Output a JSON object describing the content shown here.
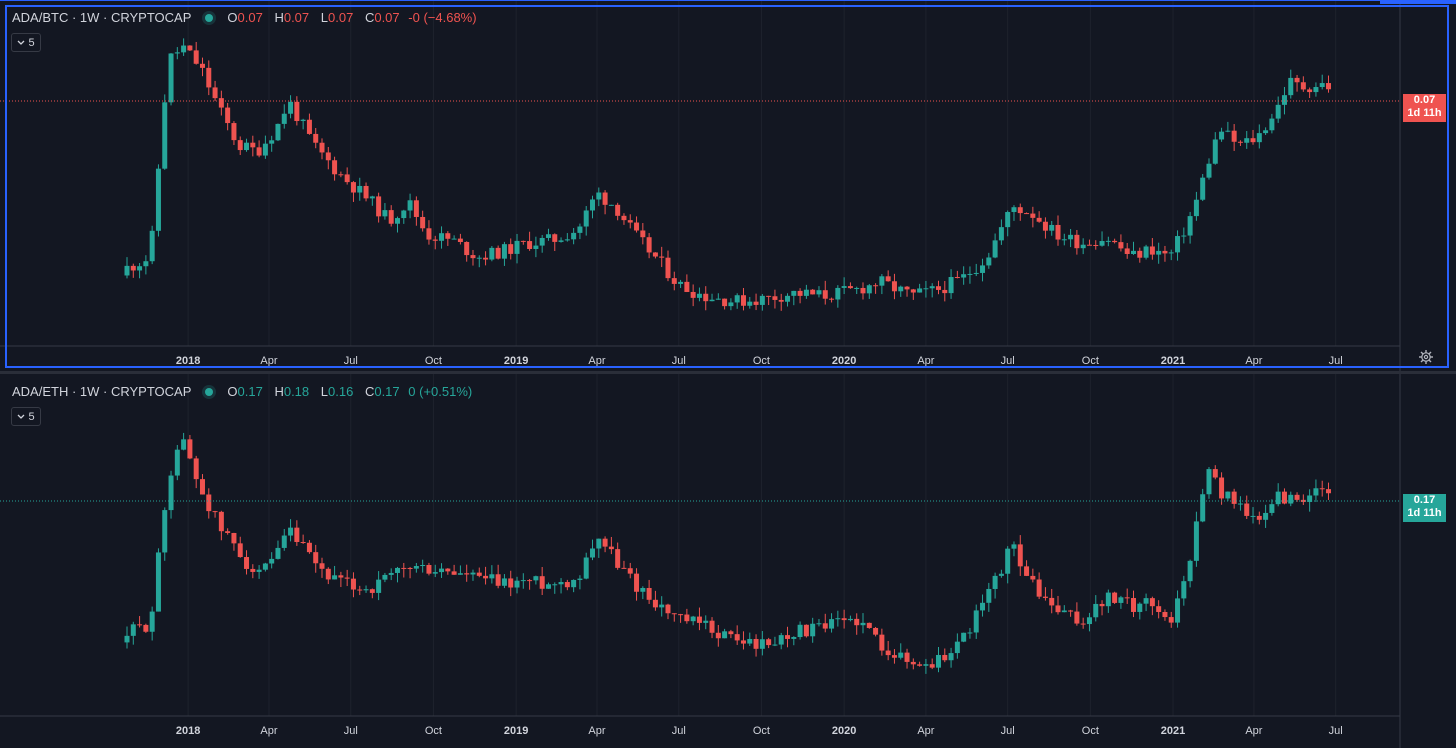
{
  "x_axis_ticks": [
    "2018",
    "Apr",
    "Jul",
    "Oct",
    "2019",
    "Apr",
    "Jul",
    "Oct",
    "2020",
    "Apr",
    "Jul",
    "Oct",
    "2021",
    "Apr",
    "Jul"
  ],
  "panes": [
    {
      "symbol": "ADA/BTC · 1W · CRYPTOCAP",
      "ohlc": {
        "o_label": "O",
        "o": "0.07",
        "h_label": "H",
        "h": "0.07",
        "l_label": "L",
        "l": "0.07",
        "c_label": "C",
        "c": "0.07",
        "change": "-0 (−4.68%)"
      },
      "change_direction": "down",
      "collapse_label": "5",
      "price_label": "0.07",
      "countdown": "1d 11h",
      "label_color": "#ef5350"
    },
    {
      "symbol": "ADA/ETH · 1W · CRYPTOCAP",
      "ohlc": {
        "o_label": "O",
        "o": "0.17",
        "h_label": "H",
        "h": "0.18",
        "l_label": "L",
        "l": "0.16",
        "c_label": "C",
        "c": "0.17",
        "change": "0 (+0.51%)"
      },
      "change_direction": "up",
      "collapse_label": "5",
      "price_label": "0.17",
      "countdown": "1d 11h",
      "label_color": "#26a69a"
    }
  ],
  "colors": {
    "background": "#131722",
    "up": "#26a69a",
    "down": "#ef5350",
    "accent": "#2962ff",
    "grid": "#1e222d",
    "text": "#d1d4dc"
  },
  "icons": {
    "collapse": "chevron-down-icon",
    "status": "live-dot-icon",
    "settings": "gear-icon"
  },
  "chart_data": [
    {
      "type": "candlestick",
      "title": "ADA/BTC · 1W · CRYPTOCAP",
      "xlabel": "",
      "ylabel": "",
      "x_range": [
        "2017-10",
        "2021-07"
      ],
      "unit": "relative price (approx.)",
      "close_path": [
        [
          "2017-10-25",
          0.18
        ],
        [
          "2017-11-20",
          0.22
        ],
        [
          "2017-12-10",
          0.93
        ],
        [
          "2017-12-18",
          0.95
        ],
        [
          "2017-12-25",
          0.98
        ],
        [
          "2018-01-15",
          0.9
        ],
        [
          "2018-02-05",
          0.75
        ],
        [
          "2018-02-26",
          0.62
        ],
        [
          "2018-03-19",
          0.6
        ],
        [
          "2018-04-09",
          0.68
        ],
        [
          "2018-04-23",
          0.78
        ],
        [
          "2018-05-21",
          0.62
        ],
        [
          "2018-06-18",
          0.52
        ],
        [
          "2018-07-23",
          0.42
        ],
        [
          "2018-08-13",
          0.35
        ],
        [
          "2018-09-03",
          0.42
        ],
        [
          "2018-09-24",
          0.3
        ],
        [
          "2018-10-22",
          0.28
        ],
        [
          "2018-11-19",
          0.22
        ],
        [
          "2018-12-17",
          0.24
        ],
        [
          "2019-01-14",
          0.27
        ],
        [
          "2019-02-11",
          0.28
        ],
        [
          "2019-03-11",
          0.32
        ],
        [
          "2019-04-01",
          0.45
        ],
        [
          "2019-04-22",
          0.4
        ],
        [
          "2019-05-13",
          0.3
        ],
        [
          "2019-06-10",
          0.2
        ],
        [
          "2019-07-01",
          0.12
        ],
        [
          "2019-07-29",
          0.08
        ],
        [
          "2019-09-02",
          0.06
        ],
        [
          "2019-10-07",
          0.07
        ],
        [
          "2019-11-04",
          0.09
        ],
        [
          "2019-12-09",
          0.08
        ],
        [
          "2020-01-13",
          0.1
        ],
        [
          "2020-02-10",
          0.13
        ],
        [
          "2020-03-16",
          0.08
        ],
        [
          "2020-04-13",
          0.1
        ],
        [
          "2020-05-11",
          0.14
        ],
        [
          "2020-06-08",
          0.22
        ],
        [
          "2020-07-06",
          0.4
        ],
        [
          "2020-07-27",
          0.38
        ],
        [
          "2020-08-24",
          0.3
        ],
        [
          "2020-09-21",
          0.27
        ],
        [
          "2020-10-19",
          0.29
        ],
        [
          "2020-11-16",
          0.22
        ],
        [
          "2020-12-07",
          0.25
        ],
        [
          "2020-12-28",
          0.22
        ],
        [
          "2021-01-11",
          0.3
        ],
        [
          "2021-01-25",
          0.4
        ],
        [
          "2021-02-08",
          0.55
        ],
        [
          "2021-02-22",
          0.68
        ],
        [
          "2021-03-15",
          0.62
        ],
        [
          "2021-04-05",
          0.65
        ],
        [
          "2021-04-26",
          0.75
        ],
        [
          "2021-05-10",
          0.85
        ],
        [
          "2021-05-24",
          0.83
        ],
        [
          "2021-06-14",
          0.84
        ],
        [
          "2021-06-28",
          0.83
        ]
      ]
    },
    {
      "type": "candlestick",
      "title": "ADA/ETH · 1W · CRYPTOCAP",
      "xlabel": "",
      "ylabel": "",
      "x_range": [
        "2017-10",
        "2021-07"
      ],
      "unit": "relative price (approx.)",
      "close_path": [
        [
          "2017-10-25",
          0.2
        ],
        [
          "2017-11-20",
          0.24
        ],
        [
          "2017-12-10",
          0.75
        ],
        [
          "2017-12-18",
          0.85
        ],
        [
          "2017-12-25",
          0.9
        ],
        [
          "2018-01-15",
          0.72
        ],
        [
          "2018-02-05",
          0.58
        ],
        [
          "2018-02-26",
          0.5
        ],
        [
          "2018-03-19",
          0.4
        ],
        [
          "2018-04-09",
          0.47
        ],
        [
          "2018-04-23",
          0.57
        ],
        [
          "2018-05-21",
          0.45
        ],
        [
          "2018-06-18",
          0.38
        ],
        [
          "2018-07-23",
          0.36
        ],
        [
          "2018-08-13",
          0.4
        ],
        [
          "2018-09-03",
          0.44
        ],
        [
          "2018-09-24",
          0.43
        ],
        [
          "2018-10-22",
          0.42
        ],
        [
          "2018-11-19",
          0.4
        ],
        [
          "2018-12-17",
          0.38
        ],
        [
          "2019-01-14",
          0.39
        ],
        [
          "2019-02-11",
          0.38
        ],
        [
          "2019-03-11",
          0.4
        ],
        [
          "2019-04-01",
          0.56
        ],
        [
          "2019-04-22",
          0.46
        ],
        [
          "2019-05-13",
          0.38
        ],
        [
          "2019-06-10",
          0.3
        ],
        [
          "2019-07-01",
          0.25
        ],
        [
          "2019-07-29",
          0.23
        ],
        [
          "2019-09-02",
          0.18
        ],
        [
          "2019-10-07",
          0.16
        ],
        [
          "2019-11-04",
          0.21
        ],
        [
          "2019-12-09",
          0.22
        ],
        [
          "2020-01-13",
          0.26
        ],
        [
          "2020-02-10",
          0.17
        ],
        [
          "2020-03-16",
          0.09
        ],
        [
          "2020-04-13",
          0.1
        ],
        [
          "2020-05-11",
          0.18
        ],
        [
          "2020-06-08",
          0.33
        ],
        [
          "2020-07-06",
          0.52
        ],
        [
          "2020-07-27",
          0.38
        ],
        [
          "2020-08-24",
          0.28
        ],
        [
          "2020-09-21",
          0.24
        ],
        [
          "2020-10-19",
          0.33
        ],
        [
          "2020-11-16",
          0.3
        ],
        [
          "2020-12-07",
          0.32
        ],
        [
          "2020-12-28",
          0.24
        ],
        [
          "2021-01-11",
          0.36
        ],
        [
          "2021-01-25",
          0.55
        ],
        [
          "2021-02-08",
          0.82
        ],
        [
          "2021-02-22",
          0.7
        ],
        [
          "2021-03-15",
          0.68
        ],
        [
          "2021-04-05",
          0.58
        ],
        [
          "2021-04-26",
          0.7
        ],
        [
          "2021-05-10",
          0.68
        ],
        [
          "2021-05-24",
          0.69
        ],
        [
          "2021-06-14",
          0.7
        ],
        [
          "2021-06-28",
          0.69
        ]
      ]
    }
  ]
}
